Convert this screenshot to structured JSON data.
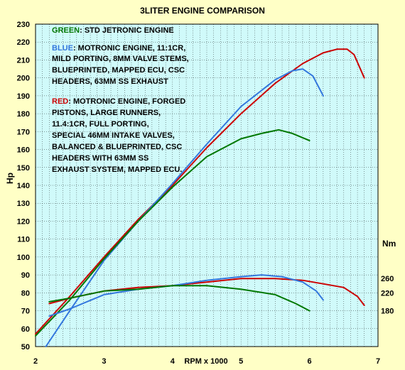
{
  "chart_data": {
    "type": "line",
    "title": "3LITER ENGINE COMPARISON",
    "xlabel": "RPM x 1000",
    "ylabel": "Hp",
    "y2label": "Nm",
    "xlim": [
      2,
      7
    ],
    "ylim": [
      50,
      230
    ],
    "grid": true,
    "x_ticks": [
      2,
      3,
      4,
      5,
      6,
      7
    ],
    "y_ticks": [
      50,
      60,
      70,
      80,
      90,
      100,
      110,
      120,
      130,
      140,
      150,
      160,
      170,
      180,
      190,
      200,
      210,
      220,
      230
    ],
    "y2_ticks": [
      {
        "label": "260",
        "at_hp": 88
      },
      {
        "label": "220",
        "at_hp": 80
      },
      {
        "label": "180",
        "at_hp": 70
      }
    ],
    "annotations": {
      "green_key": "GREEN",
      "green_desc": ": STD JETRONIC ENGINE",
      "blue_key": "BLUE",
      "blue_lines": [
        ": MOTRONIC ENGINE, 11:1CR,",
        "MILD PORTING, 8MM VALVE STEMS,",
        "BLUEPRINTED, MAPPED ECU, CSC",
        "HEADERS, 63MM SS EXHAUST"
      ],
      "red_key": "RED",
      "red_lines": [
        ": MOTRONIC ENGINE, FORGED",
        "PISTONS,  LARGE RUNNERS,",
        "11.4:1CR,  FULL PORTING,",
        "SPECIAL 46MM INTAKE VALVES,",
        "BALANCED & BLUEPRINTED, CSC",
        "HEADERS WITH 63MM SS",
        "EXHAUST SYSTEM, MAPPED ECU."
      ]
    },
    "series": [
      {
        "color": "#cc0000",
        "x": [
          2.0,
          2.5,
          3.0,
          3.5,
          4.0,
          4.5,
          5.0,
          5.5,
          5.9,
          6.2,
          6.4,
          6.55,
          6.65,
          6.8
        ],
        "y": [
          57,
          78,
          100,
          121,
          140,
          161,
          180,
          197,
          208,
          214,
          216,
          216,
          213,
          200
        ]
      },
      {
        "color": "#3377dd",
        "x": [
          2.15,
          2.5,
          3.0,
          3.5,
          4.0,
          4.5,
          5.0,
          5.5,
          5.75,
          5.9,
          6.05,
          6.2
        ],
        "y": [
          50,
          70,
          98,
          120,
          141,
          163,
          184,
          199,
          204,
          205,
          201,
          190
        ]
      },
      {
        "color": "#007700",
        "x": [
          2.0,
          2.5,
          3.0,
          3.5,
          4.0,
          4.5,
          5.0,
          5.3,
          5.55,
          5.75,
          6.0
        ],
        "y": [
          56,
          76,
          99,
          120,
          139,
          156,
          166,
          169,
          171,
          169,
          165
        ]
      },
      {
        "color": "#cc0000",
        "x": [
          2.2,
          2.5,
          3.0,
          3.5,
          4.0,
          4.5,
          5.0,
          5.5,
          5.9,
          6.2,
          6.5,
          6.7,
          6.8
        ],
        "y": [
          74,
          77,
          81,
          83,
          84,
          86,
          88,
          88,
          87,
          85,
          83,
          78,
          73
        ]
      },
      {
        "color": "#3377dd",
        "x": [
          2.2,
          2.5,
          3.0,
          3.5,
          4.0,
          4.5,
          5.0,
          5.3,
          5.6,
          5.9,
          6.1,
          6.2
        ],
        "y": [
          67,
          71,
          79,
          82,
          84,
          87,
          89,
          90,
          89,
          86,
          81,
          76
        ]
      },
      {
        "color": "#007700",
        "x": [
          2.2,
          2.5,
          3.0,
          3.5,
          4.0,
          4.5,
          5.0,
          5.5,
          5.8,
          6.0
        ],
        "y": [
          75,
          77,
          81,
          82,
          84,
          84,
          82,
          79,
          74,
          70
        ]
      }
    ]
  }
}
